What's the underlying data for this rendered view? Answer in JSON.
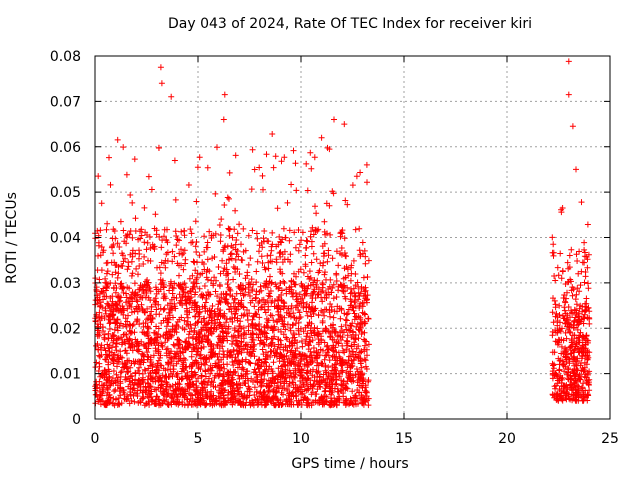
{
  "chart_data": {
    "type": "scatter",
    "title": "Day 043 of 2024, Rate Of TEC Index for receiver kiri",
    "xlabel": "GPS time / hours",
    "ylabel": "ROTI / TECUs",
    "xlim": [
      0,
      25
    ],
    "ylim": [
      0,
      0.08
    ],
    "xticks": [
      "0",
      "5",
      "10",
      "15",
      "20",
      "25"
    ],
    "yticks": [
      "0",
      "0.01",
      "0.02",
      "0.03",
      "0.04",
      "0.05",
      "0.06",
      "0.07",
      "0.08"
    ],
    "grid": true,
    "marker": "+",
    "color": "#ff0000",
    "data_segments": [
      {
        "x_start": 0.0,
        "x_end": 13.3,
        "typical_range": [
          0.003,
          0.03
        ]
      },
      {
        "x_start": 22.2,
        "x_end": 24.0,
        "typical_range": [
          0.004,
          0.025
        ]
      }
    ],
    "notable_points": [
      {
        "x": 3.2,
        "y": 0.0775
      },
      {
        "x": 3.25,
        "y": 0.074
      },
      {
        "x": 3.7,
        "y": 0.071
      },
      {
        "x": 6.3,
        "y": 0.0715
      },
      {
        "x": 6.25,
        "y": 0.066
      },
      {
        "x": 8.6,
        "y": 0.0628
      },
      {
        "x": 11.6,
        "y": 0.066
      },
      {
        "x": 11.0,
        "y": 0.062
      },
      {
        "x": 12.1,
        "y": 0.065
      },
      {
        "x": 1.1,
        "y": 0.0615
      },
      {
        "x": 3.1,
        "y": 0.0598
      },
      {
        "x": 13.2,
        "y": 0.056
      },
      {
        "x": 23.0,
        "y": 0.0788
      },
      {
        "x": 23.0,
        "y": 0.0715
      },
      {
        "x": 23.2,
        "y": 0.0645
      },
      {
        "x": 23.35,
        "y": 0.055
      },
      {
        "x": 22.7,
        "y": 0.0465
      }
    ]
  }
}
